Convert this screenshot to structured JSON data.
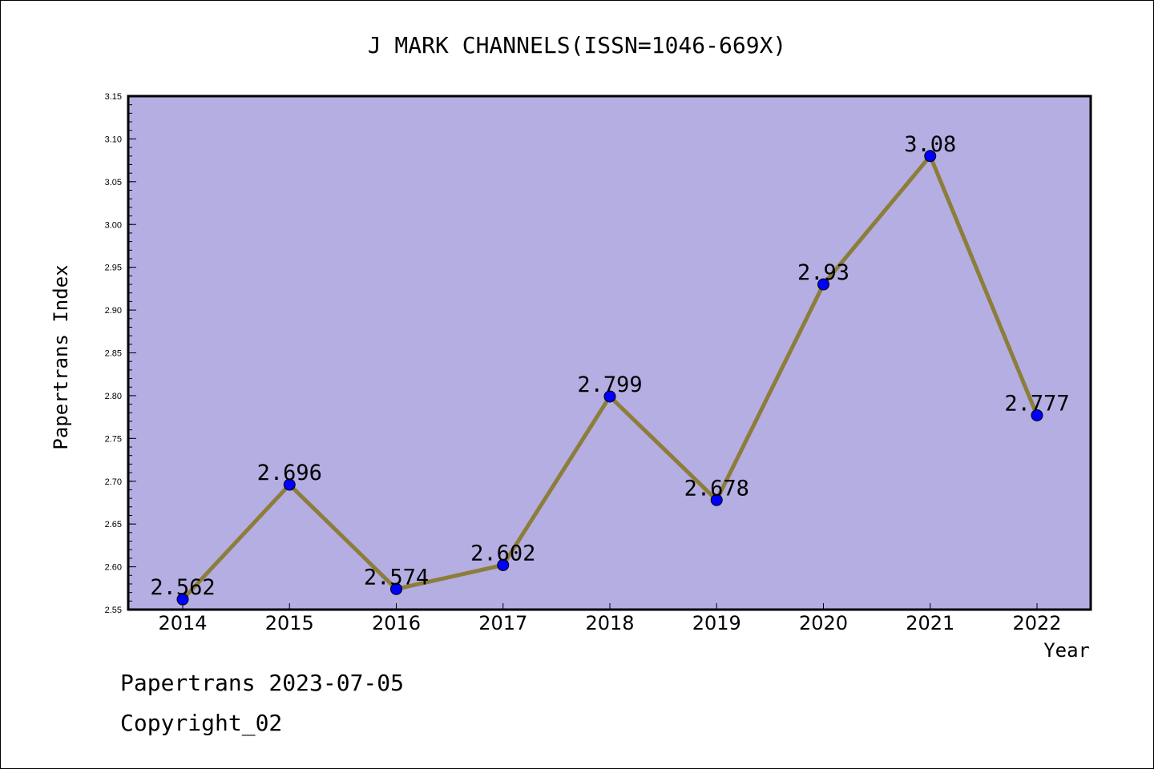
{
  "chart_data": {
    "type": "line",
    "title": "J MARK CHANNELS(ISSN=1046-669X)",
    "xlabel": "Year",
    "ylabel": "Papertrans Index",
    "categories": [
      "2014",
      "2015",
      "2016",
      "2017",
      "2018",
      "2019",
      "2020",
      "2021",
      "2022"
    ],
    "series": [
      {
        "values": [
          2.562,
          2.696,
          2.574,
          2.602,
          2.799,
          2.678,
          2.93,
          3.08,
          2.777
        ],
        "labels": [
          "2.562",
          "2.696",
          "2.574",
          "2.602",
          "2.799",
          "2.678",
          "2.93",
          "3.08",
          "2.777"
        ]
      }
    ],
    "ylim": [
      2.55,
      3.15
    ],
    "yticks": [
      "2.55",
      "2.60",
      "2.65",
      "2.70",
      "2.75",
      "2.80",
      "2.85",
      "2.90",
      "2.95",
      "3.00",
      "3.05",
      "3.10",
      "3.15"
    ],
    "grid": false,
    "colors": {
      "plot_background": "#b4aee2",
      "line": "#8c7d3a",
      "marker": "#0000ff"
    }
  },
  "footer": {
    "line1": "Papertrans 2023-07-05",
    "line2": "Copyright_02"
  }
}
